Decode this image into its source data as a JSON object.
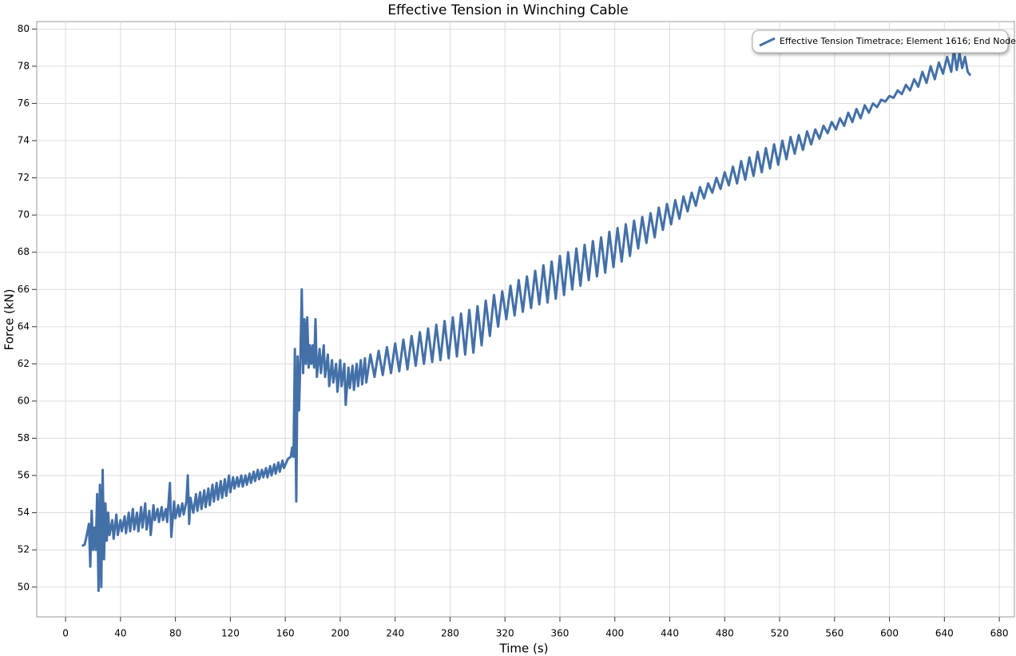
{
  "chart_data": {
    "type": "line",
    "title": "Effective Tension in Winching Cable",
    "x_label": "Time (s)",
    "y_label": "Force (kN)",
    "xlim": [
      -21,
      691
    ],
    "ylim": [
      48.4,
      80.4
    ],
    "xticks": [
      0,
      40,
      80,
      120,
      160,
      200,
      240,
      280,
      320,
      360,
      400,
      440,
      480,
      520,
      560,
      600,
      640,
      680
    ],
    "yticks": [
      50,
      52,
      54,
      56,
      58,
      60,
      62,
      64,
      66,
      68,
      70,
      72,
      74,
      76,
      78,
      80
    ],
    "grid": true,
    "legend": "upper right",
    "x": [
      12,
      14,
      16,
      17,
      18,
      19,
      20,
      21,
      22,
      23,
      24,
      25,
      26,
      27,
      28,
      29,
      30,
      31,
      32,
      34,
      35,
      37,
      38,
      40,
      41,
      43,
      44,
      46,
      47,
      49,
      50,
      52,
      53,
      55,
      56,
      58,
      59,
      61,
      62,
      64,
      65,
      67,
      68,
      70,
      71,
      73,
      74,
      76,
      77,
      79,
      80,
      82,
      83,
      85,
      86,
      88,
      89,
      90,
      91,
      93,
      95,
      96,
      98,
      99,
      101,
      102,
      104,
      105,
      107,
      108,
      110,
      111,
      113,
      114,
      116,
      117,
      119,
      120,
      122,
      123,
      125,
      126,
      128,
      129,
      131,
      132,
      134,
      135,
      137,
      138,
      140,
      141,
      143,
      144,
      146,
      147,
      149,
      150,
      152,
      153,
      155,
      156,
      158,
      159,
      162,
      164,
      165,
      166,
      167,
      168,
      169,
      170,
      171,
      172,
      173,
      174,
      175,
      176,
      177,
      178,
      179,
      180,
      181,
      182,
      183,
      185,
      186,
      188,
      189,
      191,
      192,
      194,
      195,
      197,
      198,
      200,
      201,
      203,
      204,
      206,
      207,
      209,
      210,
      212,
      213,
      215,
      216,
      218,
      219,
      222,
      225,
      228,
      231,
      234,
      237,
      240,
      243,
      246,
      249,
      252,
      255,
      258,
      261,
      264,
      267,
      270,
      273,
      276,
      279,
      282,
      285,
      288,
      291,
      294,
      297,
      300,
      303,
      306,
      309,
      312,
      315,
      318,
      321,
      324,
      327,
      330,
      333,
      336,
      339,
      342,
      345,
      348,
      351,
      354,
      357,
      360,
      363,
      366,
      369,
      372,
      375,
      378,
      381,
      384,
      387,
      390,
      393,
      396,
      399,
      402,
      405,
      408,
      411,
      414,
      417,
      420,
      423,
      426,
      429,
      432,
      435,
      438,
      441,
      444,
      447,
      450,
      453,
      456,
      459,
      462,
      465,
      468,
      471,
      474,
      477,
      480,
      483,
      486,
      489,
      492,
      495,
      498,
      501,
      504,
      507,
      510,
      513,
      516,
      519,
      522,
      525,
      528,
      531,
      534,
      537,
      540,
      543,
      546,
      549,
      552,
      555,
      558,
      561,
      564,
      567,
      570,
      573,
      576,
      579,
      582,
      585,
      588,
      591,
      594,
      597,
      600,
      603,
      606,
      609,
      612,
      615,
      618,
      621,
      624,
      627,
      630,
      633,
      636,
      639,
      642,
      645,
      647,
      649,
      651,
      653,
      655,
      657,
      659
    ],
    "series": [
      {
        "name": "Effective Tension Timetrace; Element 1616; End Node",
        "color": "#4470a8",
        "values": [
          52.2,
          52.3,
          53.0,
          53.4,
          51.1,
          54.1,
          52.0,
          53.2,
          52.0,
          55.0,
          49.8,
          55.5,
          50.0,
          56.3,
          51.5,
          54.5,
          52.5,
          54.0,
          52.8,
          53.6,
          52.6,
          53.9,
          52.8,
          53.6,
          53.0,
          53.8,
          52.9,
          54.0,
          53.0,
          54.2,
          53.1,
          54.0,
          53.0,
          54.3,
          53.2,
          54.5,
          53.1,
          54.1,
          52.8,
          54.4,
          53.6,
          54.2,
          53.5,
          54.3,
          53.6,
          54.2,
          53.5,
          55.6,
          52.7,
          54.6,
          53.7,
          54.4,
          53.8,
          54.5,
          53.9,
          54.6,
          56.0,
          53.4,
          54.8,
          54.0,
          55.0,
          54.1,
          55.1,
          54.2,
          55.2,
          54.3,
          55.3,
          54.4,
          55.5,
          54.6,
          55.6,
          54.7,
          55.7,
          54.8,
          55.8,
          54.9,
          56.0,
          55.1,
          55.9,
          55.3,
          55.9,
          55.4,
          56.0,
          55.4,
          56.0,
          55.5,
          56.1,
          55.6,
          56.2,
          55.7,
          56.3,
          55.8,
          56.3,
          55.9,
          56.4,
          55.9,
          56.5,
          56.0,
          56.6,
          56.1,
          56.7,
          56.2,
          56.8,
          56.4,
          56.9,
          57.0,
          57.5,
          57.0,
          62.8,
          54.6,
          62.4,
          59.5,
          62.2,
          66.0,
          61.5,
          64.4,
          62.0,
          64.5,
          61.8,
          63.0,
          62.0,
          63.0,
          61.8,
          64.4,
          61.3,
          62.8,
          61.5,
          63.0,
          61.3,
          62.5,
          60.8,
          62.2,
          61.0,
          62.0,
          60.5,
          62.2,
          60.8,
          62.0,
          59.8,
          61.8,
          60.7,
          61.9,
          60.6,
          62.0,
          60.8,
          62.2,
          60.9,
          62.3,
          61.0,
          62.5,
          61.3,
          62.7,
          61.4,
          62.9,
          61.5,
          63.1,
          61.6,
          63.3,
          61.7,
          63.5,
          61.9,
          63.7,
          62.0,
          63.9,
          62.1,
          64.1,
          62.2,
          64.3,
          62.3,
          64.5,
          62.4,
          64.7,
          62.5,
          64.9,
          62.6,
          65.1,
          63.0,
          65.4,
          63.5,
          65.7,
          64.0,
          65.9,
          64.4,
          66.2,
          64.6,
          66.5,
          64.8,
          66.7,
          65.0,
          67.0,
          65.2,
          67.3,
          65.3,
          67.5,
          65.5,
          67.8,
          65.7,
          68.0,
          66.0,
          68.2,
          66.2,
          68.4,
          66.5,
          68.6,
          66.7,
          68.8,
          66.9,
          69.1,
          67.2,
          69.3,
          67.5,
          69.5,
          67.8,
          69.7,
          68.2,
          69.9,
          68.5,
          70.1,
          68.8,
          70.4,
          69.2,
          70.6,
          69.5,
          70.8,
          69.8,
          71.0,
          70.2,
          71.2,
          70.5,
          71.5,
          70.9,
          71.7,
          71.2,
          72.0,
          71.4,
          72.3,
          71.6,
          72.6,
          71.7,
          72.9,
          71.9,
          73.1,
          72.1,
          73.4,
          72.3,
          73.6,
          72.5,
          73.8,
          72.7,
          74.0,
          73.0,
          74.2,
          73.3,
          74.3,
          73.5,
          74.5,
          73.8,
          74.6,
          74.1,
          74.8,
          74.4,
          75.0,
          74.6,
          75.2,
          74.8,
          75.5,
          75.0,
          75.7,
          75.2,
          75.9,
          75.5,
          76.0,
          75.8,
          76.2,
          76.1,
          76.4,
          76.3,
          76.7,
          76.5,
          77.0,
          76.7,
          77.3,
          76.9,
          77.7,
          77.1,
          78.0,
          77.3,
          78.2,
          77.6,
          78.5,
          77.7,
          78.9,
          77.8,
          78.7,
          77.9,
          78.5,
          77.7,
          77.5
        ]
      }
    ]
  }
}
